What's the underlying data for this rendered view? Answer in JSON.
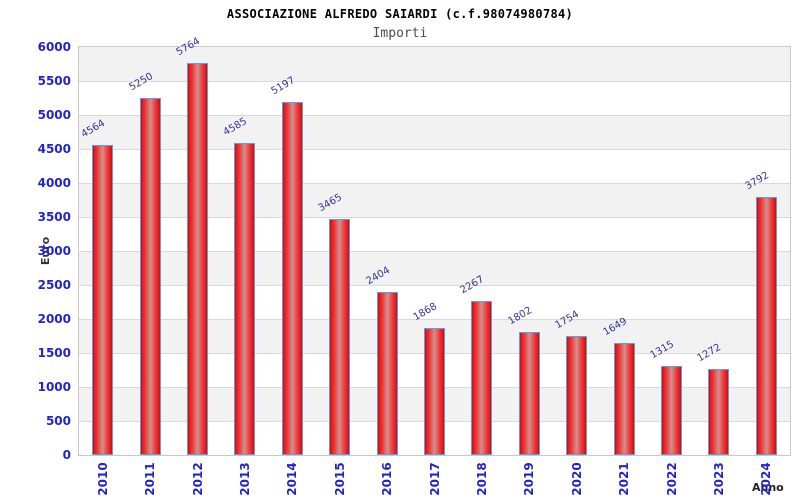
{
  "chart_data": {
    "type": "bar",
    "title": "ASSOCIAZIONE ALFREDO SAIARDI (c.f.98074980784)",
    "subtitle": "Importi",
    "categories": [
      "2010",
      "2011",
      "2012",
      "2013",
      "2014",
      "2015",
      "2016",
      "2017",
      "2018",
      "2019",
      "2020",
      "2021",
      "2022",
      "2023",
      "2024"
    ],
    "values": [
      4564,
      5250,
      5764,
      4585,
      5197,
      3465,
      2404,
      1868,
      2267,
      1802,
      1754,
      1649,
      1315,
      1272,
      3792
    ],
    "xlabel": "Anno",
    "ylabel": "Euro",
    "ylim": [
      0,
      6000
    ],
    "ytick_step": 500,
    "y_ticks": [
      0,
      500,
      1000,
      1500,
      2000,
      2500,
      3000,
      3500,
      4000,
      4500,
      5000,
      5500,
      6000
    ],
    "grid": "horizontal",
    "legend": "none",
    "band_pattern": "alternating gray/white per 500, gray band touches top (5500-6000)",
    "colors": {
      "bar_red_edge": "#c40e0e",
      "bar_red_bright": "#ef3535",
      "bar_center_highlight": "#d09090",
      "bar_border_blue": "#58a0ea",
      "tick_label_blue": "#2323cc",
      "value_label_navy": "#333399",
      "band_gray": "#f2f2f2",
      "band_white": "#ffffff",
      "gridline": "#d9d9d9",
      "plot_border": "#c9c9c9",
      "title_color": "#000000",
      "subtitle_color": "#4d4d4d",
      "axis_title_color": "#333333"
    }
  }
}
